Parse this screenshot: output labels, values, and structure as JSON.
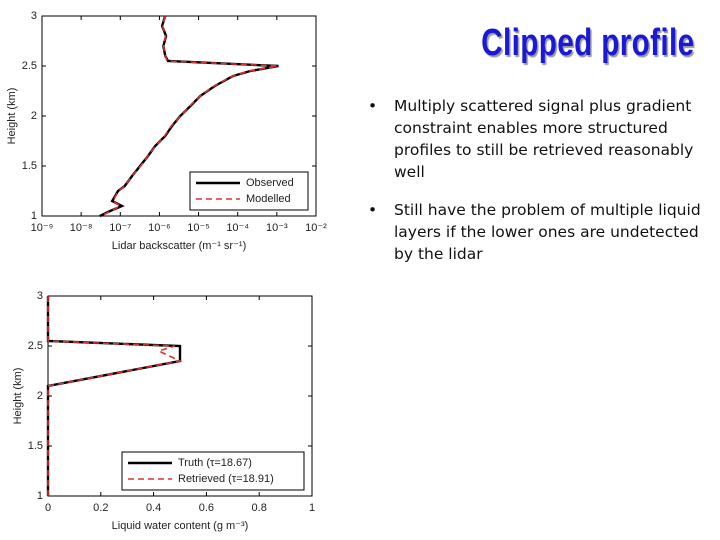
{
  "title": "Clipped profile",
  "bullets": [
    "Multiply scattered signal plus gradient constraint enables more structured profiles to still be retrieved reasonably well",
    "Still have the problem of multiple liquid layers if the lower ones are undetected by the lidar"
  ],
  "chart_data": [
    {
      "type": "line",
      "xlabel": "Lidar backscatter (m⁻¹ sr⁻¹)",
      "ylabel": "Height (km)",
      "xscale": "log",
      "xlim": [
        1e-09,
        0.01
      ],
      "xticks": [
        {
          "value": 1e-09,
          "label": "10⁻⁹"
        },
        {
          "value": 1e-08,
          "label": "10⁻⁸"
        },
        {
          "value": 1e-07,
          "label": "10⁻⁷"
        },
        {
          "value": 1e-06,
          "label": "10⁻⁶"
        },
        {
          "value": 1e-05,
          "label": "10⁻⁵"
        },
        {
          "value": 0.0001,
          "label": "10⁻⁴"
        },
        {
          "value": 0.001,
          "label": "10⁻³"
        },
        {
          "value": 0.01,
          "label": "10⁻²"
        }
      ],
      "ylim": [
        1,
        3
      ],
      "yticks": [
        1,
        1.5,
        2,
        2.5,
        3
      ],
      "legend": "lower right",
      "y": [
        3.0,
        2.9,
        2.8,
        2.7,
        2.6,
        2.55,
        2.5,
        2.45,
        2.4,
        2.3,
        2.2,
        2.1,
        2.0,
        1.9,
        1.8,
        1.7,
        1.6,
        1.5,
        1.4,
        1.3,
        1.25,
        1.2,
        1.15,
        1.1,
        1.05,
        1.0
      ],
      "series": [
        {
          "name": "Observed",
          "color": "#000000",
          "dash": false,
          "values": [
            1.4e-06,
            1.17e-06,
            1.48e-06,
            1.26e-06,
            1.41e-06,
            1.66e-06,
            0.0011,
            0.00021,
            7.6e-05,
            2.6e-05,
            1.1e-05,
            6.2e-06,
            3.4e-06,
            2.1e-06,
            1.4e-06,
            7.8e-07,
            5.1e-07,
            3.2e-07,
            2e-07,
            1.3e-07,
            8.7e-08,
            7.4e-08,
            6.2e-08,
            1.1e-07,
            5.5e-08,
            3e-08
          ]
        },
        {
          "name": "Modelled",
          "color": "#e03030",
          "dash": true,
          "values": [
            1.4e-06,
            1.2e-06,
            1.45e-06,
            1.28e-06,
            1.4e-06,
            1.6e-06,
            0.00105,
            0.0002,
            7.4e-05,
            2.5e-05,
            1.1e-05,
            6e-06,
            3.5e-06,
            2e-06,
            1.35e-06,
            8e-07,
            5e-07,
            3.3e-07,
            2e-07,
            1.3e-07,
            9e-08,
            7.6e-08,
            6.5e-08,
            1e-07,
            5.8e-08,
            3.2e-08
          ]
        }
      ]
    },
    {
      "type": "line",
      "xlabel": "Liquid water content (g m⁻³)",
      "ylabel": "Height (km)",
      "xscale": "linear",
      "xlim": [
        0,
        1
      ],
      "xticks": [
        0,
        0.2,
        0.4,
        0.6,
        0.8,
        1
      ],
      "ylim": [
        1,
        3
      ],
      "yticks": [
        1,
        1.5,
        2,
        2.5,
        3
      ],
      "legend": "lower right",
      "y": [
        3.0,
        2.55,
        2.5,
        2.45,
        2.4,
        2.35,
        2.1,
        1.0
      ],
      "series": [
        {
          "name": "Truth (τ=18.67)",
          "color": "#000000",
          "dash": false,
          "values": [
            0,
            0,
            0.5,
            0.5,
            0.5,
            0.5,
            0,
            0
          ]
        },
        {
          "name": "Retrieved (τ=18.91)",
          "color": "#e03030",
          "dash": true,
          "values": [
            0,
            0,
            0.48,
            0.42,
            0.46,
            0.5,
            0,
            0
          ]
        }
      ]
    }
  ]
}
